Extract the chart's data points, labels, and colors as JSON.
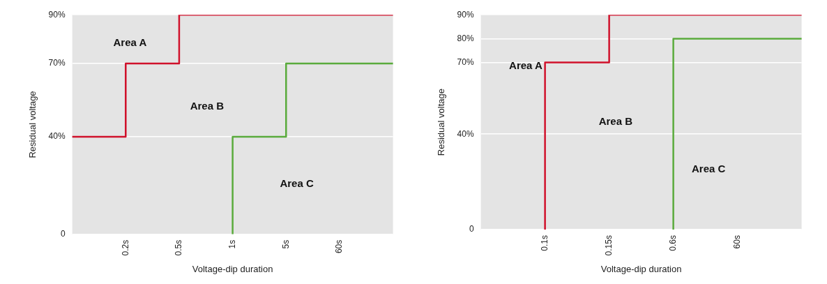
{
  "chart_data": [
    {
      "type": "step",
      "xlabel": "Voltage-dip duration",
      "ylabel": "Residual voltage",
      "categories": [
        null,
        "0.2s",
        "0.5s",
        "1s",
        "5s",
        "60s",
        null
      ],
      "series": [
        {
          "color": "#d0112b",
          "values": [
            40,
            40,
            70,
            90,
            90,
            90,
            90
          ]
        },
        {
          "color": "#5aab3c",
          "values": [
            null,
            null,
            null,
            0,
            40,
            70,
            70
          ]
        }
      ],
      "ylim": [
        0,
        90
      ],
      "yticks": [
        0,
        {
          "value": 40,
          "label": "40%"
        },
        {
          "value": 70,
          "label": "70%"
        },
        {
          "value": 90,
          "label": "90%"
        }
      ],
      "grid": "y",
      "legend": false,
      "annotations": [
        "Area A",
        "Area B",
        "Area C"
      ]
    },
    {
      "type": "step",
      "xlabel": "Voltage-dip duration",
      "ylabel": "Residual voltage",
      "categories": [
        null,
        "0.1s",
        "0.15s",
        "0.6s",
        "60s",
        null
      ],
      "series": [
        {
          "color": "#d0112b",
          "values": [
            null,
            0,
            70,
            90,
            90,
            90
          ]
        },
        {
          "color": "#5aab3c",
          "values": [
            null,
            null,
            null,
            0,
            80,
            80
          ]
        }
      ],
      "ylim": [
        0,
        90
      ],
      "yticks": [
        0,
        {
          "value": 40,
          "label": "40%"
        },
        {
          "value": 70,
          "label": "70%"
        },
        {
          "value": 80,
          "label": "80%"
        },
        {
          "value": 90,
          "label": "90%"
        }
      ],
      "grid": "y",
      "legend": false,
      "annotations": [
        "Area A",
        "Area B",
        "Area C"
      ]
    }
  ]
}
